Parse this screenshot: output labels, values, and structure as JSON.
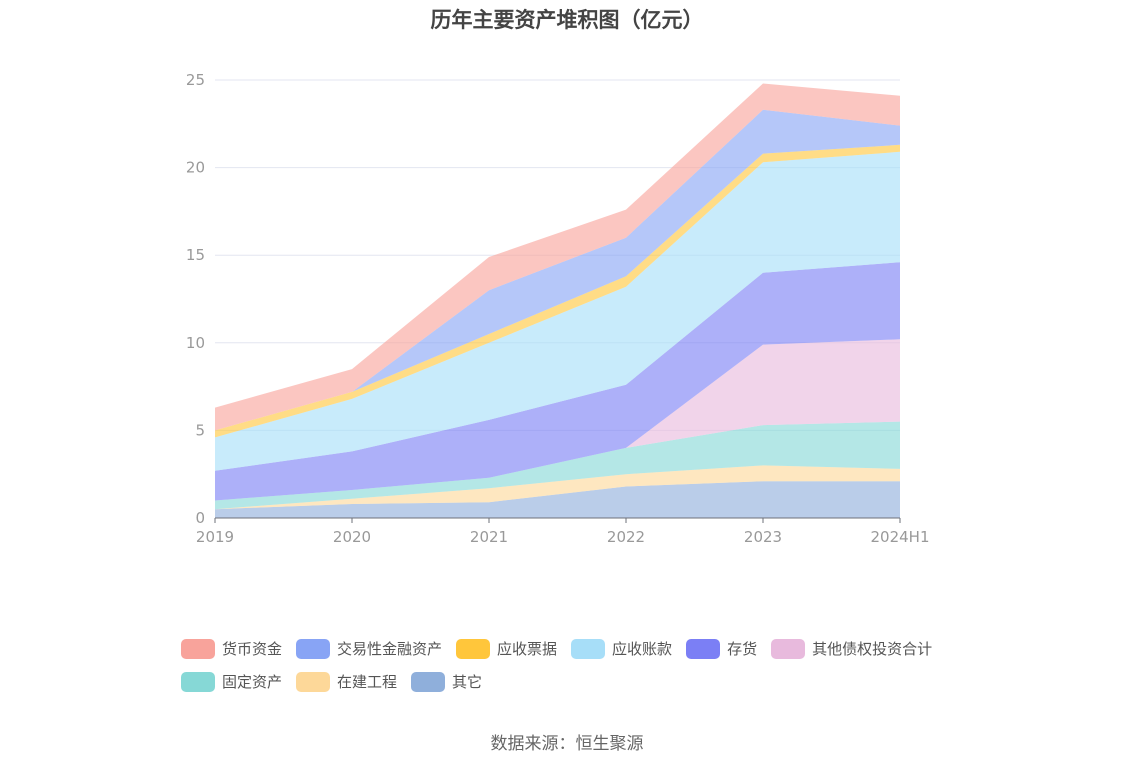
{
  "chart_data": {
    "type": "area",
    "stacked": true,
    "title": "历年主要资产堆积图（亿元）",
    "source": "数据来源：恒生聚源",
    "categories": [
      "2019",
      "2020",
      "2021",
      "2022",
      "2023",
      "2024H1"
    ],
    "ylim": [
      0,
      25
    ],
    "yticks": [
      "0",
      "5",
      "10",
      "15",
      "20",
      "25"
    ],
    "grid": true,
    "legend_position": "bottom",
    "series": [
      {
        "name": "其它",
        "color": "#8FAFDB",
        "values": [
          0.5,
          0.8,
          0.9,
          1.8,
          2.1,
          2.1
        ]
      },
      {
        "name": "在建工程",
        "color": "#FDD899",
        "values": [
          0.0,
          0.3,
          0.8,
          0.7,
          0.9,
          0.7
        ]
      },
      {
        "name": "固定资产",
        "color": "#86D8D6",
        "values": [
          0.5,
          0.5,
          0.6,
          1.5,
          2.3,
          2.7
        ]
      },
      {
        "name": "其他债权投资合计",
        "color": "#E8BADD",
        "values": [
          0.0,
          0.0,
          0.0,
          0.0,
          4.6,
          4.7
        ]
      },
      {
        "name": "存货",
        "color": "#7B7FF5",
        "values": [
          1.7,
          2.2,
          3.3,
          3.6,
          4.1,
          4.4
        ]
      },
      {
        "name": "应收账款",
        "color": "#A7DEF8",
        "values": [
          1.9,
          3.0,
          4.4,
          5.6,
          6.3,
          6.3
        ]
      },
      {
        "name": "应收票据",
        "color": "#FFC63B",
        "values": [
          0.4,
          0.4,
          0.5,
          0.6,
          0.5,
          0.4
        ]
      },
      {
        "name": "交易性金融资产",
        "color": "#88A4F5",
        "values": [
          0.0,
          0.0,
          2.5,
          2.2,
          2.5,
          1.1
        ]
      },
      {
        "name": "货币资金",
        "color": "#F8A39B",
        "values": [
          1.3,
          1.3,
          1.9,
          1.6,
          1.5,
          1.7
        ]
      }
    ],
    "legend_order": [
      "货币资金",
      "交易性金融资产",
      "应收票据",
      "应收账款",
      "存货",
      "其他债权投资合计",
      "固定资产",
      "在建工程",
      "其它"
    ]
  }
}
